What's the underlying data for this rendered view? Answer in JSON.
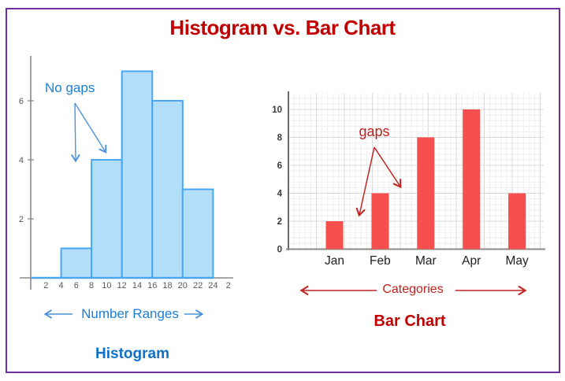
{
  "page": {
    "title": "Histogram vs. Bar Chart"
  },
  "colors": {
    "title_red": "#c00000",
    "annotation_red": "#c22424",
    "blue_text": "#1b7ed7",
    "histogram_title_blue": "#0d71c9",
    "histogram_bar_fill": "#b3def9",
    "histogram_bar_stroke": "#47a7f3",
    "bar_chart_bar_fill": "#f6504e",
    "frame_purple": "#7030a0",
    "axis_gray": "#8a8a8a"
  },
  "chart_data": [
    {
      "type": "histogram",
      "title": "Histogram",
      "xlabel": "Number Ranges",
      "annotation": "No gaps",
      "bin_edges": [
        4,
        8,
        12,
        16,
        20,
        24
      ],
      "counts": [
        1,
        4,
        7,
        6,
        3
      ],
      "x_tick_labels": [
        "2",
        "4",
        "6",
        "8",
        "10",
        "12",
        "14",
        "16",
        "18",
        "20",
        "22",
        "24",
        "2"
      ],
      "y_ticks": [
        2,
        4,
        6
      ],
      "xlim": [
        0,
        26
      ],
      "ylim": [
        0,
        7.5
      ],
      "grid": false,
      "legend": false
    },
    {
      "type": "bar",
      "title": "Bar Chart",
      "xlabel": "Categories",
      "annotation": "gaps",
      "categories": [
        "Jan",
        "Feb",
        "Mar",
        "Apr",
        "May"
      ],
      "values": [
        2,
        4,
        8,
        10,
        4
      ],
      "y_ticks": [
        0,
        2,
        4,
        6,
        8,
        10
      ],
      "ylim": [
        0,
        11.2
      ],
      "grid": true,
      "legend": false
    }
  ]
}
